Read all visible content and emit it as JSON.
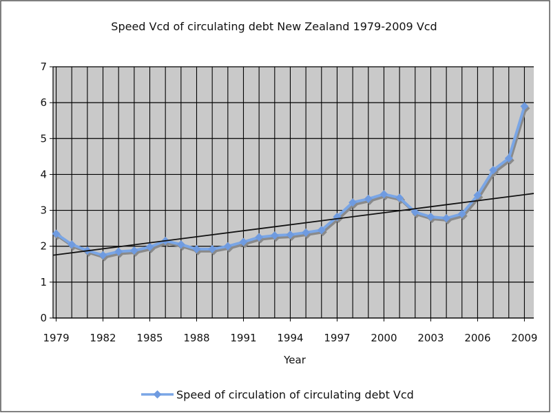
{
  "chart_data": {
    "type": "line",
    "title": "Speed Vcd of circulating debt New Zealand 1979-2009 Vcd",
    "xlabel": "Year",
    "ylabel": "",
    "xlim": [
      1979,
      2009
    ],
    "ylim": [
      0,
      7
    ],
    "x_ticks": [
      "1979",
      "1982",
      "1985",
      "1988",
      "1991",
      "1994",
      "1997",
      "2000",
      "2003",
      "2006",
      "2009"
    ],
    "y_ticks": [
      "0",
      "1",
      "2",
      "3",
      "4",
      "5",
      "6",
      "7"
    ],
    "grid": true,
    "legend_position": "bottom",
    "colors": {
      "series": "#7aa6e6",
      "marker": "#6f9be0",
      "shadow": "#8a8a8a",
      "trend": "#111111",
      "plot_bg": "#c9c9c9",
      "grid": "#000000"
    },
    "series": [
      {
        "name": "Speed of circulation of circulating debt Vcd",
        "x": [
          1979,
          1980,
          1981,
          1982,
          1983,
          1984,
          1985,
          1986,
          1987,
          1988,
          1989,
          1990,
          1991,
          1992,
          1993,
          1994,
          1995,
          1996,
          1997,
          1998,
          1999,
          2000,
          2001,
          2002,
          2003,
          2004,
          2005,
          2006,
          2007,
          2008,
          2009
        ],
        "values": [
          2.35,
          2.05,
          1.88,
          1.75,
          1.85,
          1.88,
          1.98,
          2.15,
          2.05,
          1.92,
          1.92,
          2.0,
          2.12,
          2.25,
          2.3,
          2.32,
          2.38,
          2.45,
          2.82,
          3.22,
          3.32,
          3.45,
          3.35,
          2.95,
          2.82,
          2.78,
          2.9,
          3.42,
          4.12,
          4.45,
          5.9
        ]
      }
    ],
    "trendline": {
      "x": [
        1978.8,
        2009.6
      ],
      "y": [
        1.75,
        3.47
      ]
    }
  }
}
